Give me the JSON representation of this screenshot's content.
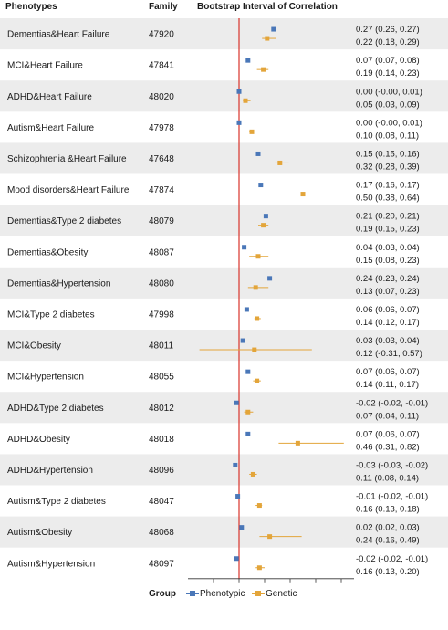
{
  "columns": {
    "phenotypes": "Phenotypes",
    "family": "Family",
    "interval": "Bootstrap Interval of Correlation"
  },
  "legend": {
    "title": "Group",
    "phenotypic": "Phenotypic",
    "genetic": "Genetic"
  },
  "colors": {
    "phenotypic": "#4a77b8",
    "genetic": "#e3a53a",
    "zero_line": "#d9342b",
    "stripe": "#ececec"
  },
  "chart_data": {
    "type": "forest",
    "xlim": [
      -0.4,
      0.9
    ],
    "xticks": [
      "-0.2",
      "0.0",
      "0.2",
      "0.4",
      "0.6",
      "0.8"
    ],
    "xtick_values": [
      -0.2,
      0.0,
      0.2,
      0.4,
      0.6,
      0.8
    ],
    "reference_line": 0,
    "series": [
      {
        "name": "Phenotypic"
      },
      {
        "name": "Genetic"
      }
    ],
    "rows": [
      {
        "label": "Dementias&Heart Failure",
        "family": "47920",
        "phenotypic": [
          0.27,
          0.26,
          0.27
        ],
        "genetic": [
          0.22,
          0.18,
          0.29
        ],
        "ph_text": "0.27 (0.26, 0.27)",
        "ge_text": "0.22 (0.18, 0.29)"
      },
      {
        "label": "MCI&Heart Failure",
        "family": "47841",
        "phenotypic": [
          0.07,
          0.07,
          0.08
        ],
        "genetic": [
          0.19,
          0.14,
          0.23
        ],
        "ph_text": "0.07 (0.07, 0.08)",
        "ge_text": "0.19 (0.14, 0.23)"
      },
      {
        "label": "ADHD&Heart Failure",
        "family": "48020",
        "phenotypic": [
          0.0,
          0.0,
          0.01
        ],
        "genetic": [
          0.05,
          0.03,
          0.09
        ],
        "ph_text": "0.00 (-0.00, 0.01)",
        "ge_text": "0.05 (0.03, 0.09)"
      },
      {
        "label": "Autism&Heart Failure",
        "family": "47978",
        "phenotypic": [
          0.0,
          0.0,
          0.01
        ],
        "genetic": [
          0.1,
          0.08,
          0.11
        ],
        "ph_text": "0.00 (-0.00, 0.01)",
        "ge_text": "0.10 (0.08, 0.11)"
      },
      {
        "label": "Schizophrenia &Heart Failure",
        "family": "47648",
        "phenotypic": [
          0.15,
          0.15,
          0.16
        ],
        "genetic": [
          0.32,
          0.28,
          0.39
        ],
        "ph_text": "0.15 (0.15, 0.16)",
        "ge_text": "0.32 (0.28, 0.39)"
      },
      {
        "label": "Mood disorders&Heart Failure",
        "family": "47874",
        "phenotypic": [
          0.17,
          0.16,
          0.17
        ],
        "genetic": [
          0.5,
          0.38,
          0.64
        ],
        "ph_text": "0.17 (0.16, 0.17)",
        "ge_text": "0.50 (0.38, 0.64)"
      },
      {
        "label": "Dementias&Type 2 diabetes",
        "family": "48079",
        "phenotypic": [
          0.21,
          0.2,
          0.21
        ],
        "genetic": [
          0.19,
          0.15,
          0.23
        ],
        "ph_text": "0.21 (0.20, 0.21)",
        "ge_text": "0.19 (0.15, 0.23)"
      },
      {
        "label": "Dementias&Obesity",
        "family": "48087",
        "phenotypic": [
          0.04,
          0.03,
          0.04
        ],
        "genetic": [
          0.15,
          0.08,
          0.23
        ],
        "ph_text": "0.04 (0.03, 0.04)",
        "ge_text": "0.15 (0.08, 0.23)"
      },
      {
        "label": "Dementias&Hypertension",
        "family": "48080",
        "phenotypic": [
          0.24,
          0.23,
          0.24
        ],
        "genetic": [
          0.13,
          0.07,
          0.23
        ],
        "ph_text": "0.24 (0.23, 0.24)",
        "ge_text": "0.13 (0.07, 0.23)"
      },
      {
        "label": "MCI&Type 2 diabetes",
        "family": "47998",
        "phenotypic": [
          0.06,
          0.06,
          0.07
        ],
        "genetic": [
          0.14,
          0.12,
          0.17
        ],
        "ph_text": "0.06 (0.06, 0.07)",
        "ge_text": "0.14 (0.12, 0.17)"
      },
      {
        "label": "MCI&Obesity",
        "family": "48011",
        "phenotypic": [
          0.03,
          0.03,
          0.04
        ],
        "genetic": [
          0.12,
          -0.31,
          0.57
        ],
        "ph_text": "0.03 (0.03, 0.04)",
        "ge_text": "0.12 (-0.31, 0.57)"
      },
      {
        "label": "MCI&Hypertension",
        "family": "48055",
        "phenotypic": [
          0.07,
          0.06,
          0.07
        ],
        "genetic": [
          0.14,
          0.11,
          0.17
        ],
        "ph_text": "0.07 (0.06, 0.07)",
        "ge_text": "0.14 (0.11, 0.17)"
      },
      {
        "label": "ADHD&Type 2 diabetes",
        "family": "48012",
        "phenotypic": [
          -0.02,
          -0.02,
          -0.01
        ],
        "genetic": [
          0.07,
          0.04,
          0.11
        ],
        "ph_text": "-0.02 (-0.02, -0.01)",
        "ge_text": "0.07 (0.04, 0.11)"
      },
      {
        "label": "ADHD&Obesity",
        "family": "48018",
        "phenotypic": [
          0.07,
          0.06,
          0.07
        ],
        "genetic": [
          0.46,
          0.31,
          0.82
        ],
        "ph_text": "0.07 (0.06, 0.07)",
        "ge_text": "0.46 (0.31, 0.82)"
      },
      {
        "label": "ADHD&Hypertension",
        "family": "48096",
        "phenotypic": [
          -0.03,
          -0.03,
          -0.02
        ],
        "genetic": [
          0.11,
          0.08,
          0.14
        ],
        "ph_text": "-0.03 (-0.03, -0.02)",
        "ge_text": "0.11 (0.08, 0.14)"
      },
      {
        "label": "Autism&Type 2 diabetes",
        "family": "48047",
        "phenotypic": [
          -0.01,
          -0.02,
          -0.01
        ],
        "genetic": [
          0.16,
          0.13,
          0.18
        ],
        "ph_text": "-0.01 (-0.02, -0.01)",
        "ge_text": "0.16 (0.13, 0.18)"
      },
      {
        "label": "Autism&Obesity",
        "family": "48068",
        "phenotypic": [
          0.02,
          0.02,
          0.03
        ],
        "genetic": [
          0.24,
          0.16,
          0.49
        ],
        "ph_text": "0.02 (0.02, 0.03)",
        "ge_text": "0.24 (0.16, 0.49)"
      },
      {
        "label": "Autism&Hypertension",
        "family": "48097",
        "phenotypic": [
          -0.02,
          -0.02,
          -0.01
        ],
        "genetic": [
          0.16,
          0.13,
          0.2
        ],
        "ph_text": "-0.02 (-0.02, -0.01)",
        "ge_text": "0.16 (0.13, 0.20)"
      }
    ]
  }
}
